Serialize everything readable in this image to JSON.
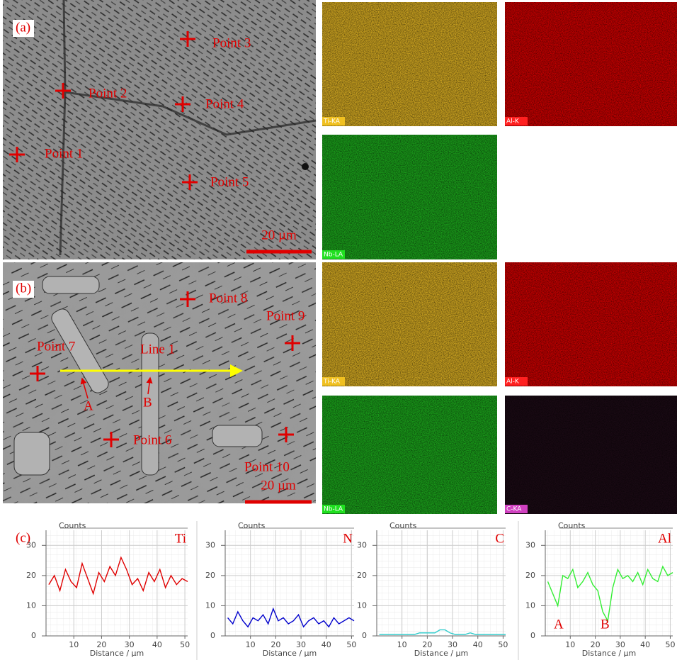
{
  "panel_a": {
    "label": "(a)",
    "points": [
      "Point 1",
      "Point 2",
      "Point 3",
      "Point 4",
      "Point 5"
    ],
    "scale_bar": "20 µm",
    "maps": [
      "Ti-KA",
      "Al-K",
      "Nb-LA"
    ]
  },
  "panel_b": {
    "label": "(b)",
    "points": [
      "Point 6",
      "Point 7",
      "Point 8",
      "Point 9",
      "Point 10"
    ],
    "line": "Line 1",
    "markers": [
      "A",
      "B"
    ],
    "scale_bar": "20 µm",
    "maps": [
      "Ti-KA",
      "Al-K",
      "Nb-LA",
      "C-KA"
    ]
  },
  "panel_c": {
    "label": "(c)"
  },
  "chart_data": [
    {
      "type": "line",
      "y_label": "Counts",
      "x_label": "Distance / µm",
      "xlim": [
        0,
        51
      ],
      "ylim": [
        0,
        35
      ],
      "xticks": [
        10,
        20,
        30,
        40,
        50
      ],
      "yticks": [
        0,
        10,
        20,
        30
      ],
      "grid": true,
      "x": [
        1,
        3,
        5,
        7,
        9,
        11,
        13,
        15,
        17,
        19,
        21,
        23,
        25,
        27,
        29,
        31,
        33,
        35,
        37,
        39,
        41,
        43,
        45,
        47,
        49,
        51
      ],
      "series": [
        {
          "name": "Ti",
          "color": "#e00000",
          "values": [
            17,
            20,
            15,
            22,
            18,
            16,
            24,
            19,
            14,
            21,
            18,
            23,
            20,
            26,
            22,
            17,
            19,
            15,
            21,
            18,
            22,
            16,
            20,
            17,
            19,
            18
          ]
        }
      ]
    },
    {
      "type": "line",
      "y_label": "Counts",
      "x_label": "Distance / µm",
      "xlim": [
        0,
        51
      ],
      "ylim": [
        0,
        35
      ],
      "xticks": [
        10,
        20,
        30,
        40,
        50
      ],
      "yticks": [
        0,
        10,
        20,
        30
      ],
      "grid": true,
      "x": [
        1,
        3,
        5,
        7,
        9,
        11,
        13,
        15,
        17,
        19,
        21,
        23,
        25,
        27,
        29,
        31,
        33,
        35,
        37,
        39,
        41,
        43,
        45,
        47,
        49,
        51
      ],
      "series": [
        {
          "name": "N",
          "color": "#0000cc",
          "values": [
            6,
            4,
            8,
            5,
            3,
            6,
            5,
            7,
            4,
            9,
            5,
            6,
            4,
            5,
            7,
            3,
            5,
            6,
            4,
            5,
            3,
            6,
            4,
            5,
            6,
            5
          ]
        }
      ]
    },
    {
      "type": "line",
      "y_label": "Counts",
      "x_label": "Distance / µm",
      "xlim": [
        0,
        51
      ],
      "ylim": [
        0,
        35
      ],
      "xticks": [
        10,
        20,
        30,
        40,
        50
      ],
      "yticks": [
        0,
        10,
        20,
        30
      ],
      "grid": true,
      "x": [
        1,
        3,
        5,
        7,
        9,
        11,
        13,
        15,
        17,
        19,
        21,
        23,
        25,
        27,
        29,
        31,
        33,
        35,
        37,
        39,
        41,
        43,
        45,
        47,
        49,
        51
      ],
      "series": [
        {
          "name": "C",
          "color": "#33cccc",
          "values": [
            0.5,
            0.5,
            0.5,
            0.5,
            0.5,
            0.5,
            0.5,
            0.5,
            1,
            1,
            1,
            1,
            2,
            2,
            1,
            0.5,
            0.5,
            0.5,
            1,
            0.5,
            0.5,
            0.5,
            0.5,
            0.5,
            0.5,
            0.5
          ]
        }
      ]
    },
    {
      "type": "line",
      "y_label": "Counts",
      "x_label": "Distance / µm",
      "xlim": [
        0,
        51
      ],
      "ylim": [
        0,
        35
      ],
      "xticks": [
        10,
        20,
        30,
        40,
        50
      ],
      "yticks": [
        0,
        10,
        20,
        30
      ],
      "grid": true,
      "x": [
        1,
        3,
        5,
        7,
        9,
        11,
        13,
        15,
        17,
        19,
        21,
        23,
        25,
        27,
        29,
        31,
        33,
        35,
        37,
        39,
        41,
        43,
        45,
        47,
        49,
        51
      ],
      "series": [
        {
          "name": "Al",
          "color": "#33ee33",
          "values": [
            18,
            14,
            10,
            20,
            19,
            22,
            16,
            18,
            21,
            17,
            15,
            8,
            5,
            16,
            22,
            19,
            20,
            18,
            21,
            17,
            22,
            19,
            18,
            23,
            20,
            21
          ]
        }
      ],
      "annotations": [
        "A",
        "B"
      ]
    }
  ]
}
